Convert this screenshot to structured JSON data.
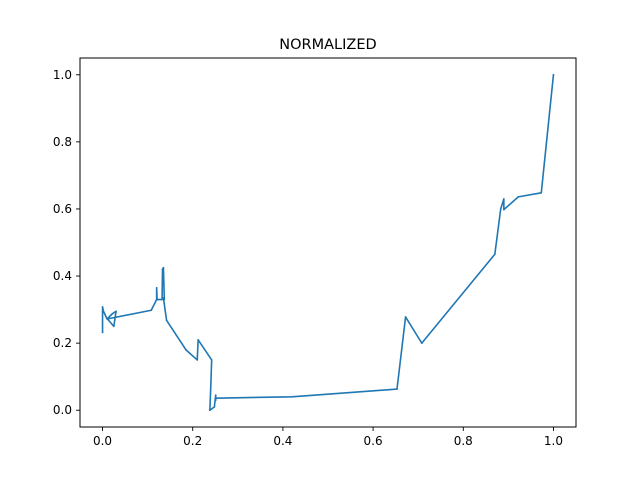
{
  "chart_data": {
    "type": "line",
    "title": "NORMALIZED",
    "xlabel": "",
    "ylabel": "",
    "xlim": [
      -0.05,
      1.05
    ],
    "ylim": [
      -0.05,
      1.05
    ],
    "grid": false,
    "x_ticks": [
      0.0,
      0.2,
      0.4,
      0.6,
      0.8,
      1.0
    ],
    "y_ticks": [
      0.0,
      0.2,
      0.4,
      0.6,
      0.8,
      1.0
    ],
    "x_tick_labels": [
      "0.0",
      "0.2",
      "0.4",
      "0.6",
      "0.8",
      "1.0"
    ],
    "y_tick_labels": [
      "0.0",
      "0.2",
      "0.4",
      "0.6",
      "0.8",
      "1.0"
    ],
    "series": [
      {
        "color": "#1f77b4",
        "x": [
          0.0,
          0.0,
          0.002,
          0.009,
          0.025,
          0.03,
          0.022,
          0.01,
          0.108,
          0.12,
          0.12,
          0.121,
          0.132,
          0.133,
          0.135,
          0.137,
          0.135,
          0.142,
          0.185,
          0.21,
          0.212,
          0.242,
          0.24,
          0.238,
          0.248,
          0.251,
          0.251,
          0.25,
          0.42,
          0.653,
          0.672,
          0.708,
          0.87,
          0.883,
          0.89,
          0.89,
          0.922,
          0.973,
          1.0
        ],
        "y": [
          0.232,
          0.308,
          0.295,
          0.275,
          0.25,
          0.295,
          0.288,
          0.272,
          0.298,
          0.33,
          0.365,
          0.33,
          0.33,
          0.42,
          0.425,
          0.33,
          0.335,
          0.268,
          0.18,
          0.15,
          0.21,
          0.15,
          0.07,
          0.0,
          0.01,
          0.045,
          0.03,
          0.036,
          0.04,
          0.063,
          0.278,
          0.2,
          0.465,
          0.6,
          0.63,
          0.598,
          0.636,
          0.648,
          1.0
        ]
      }
    ]
  }
}
